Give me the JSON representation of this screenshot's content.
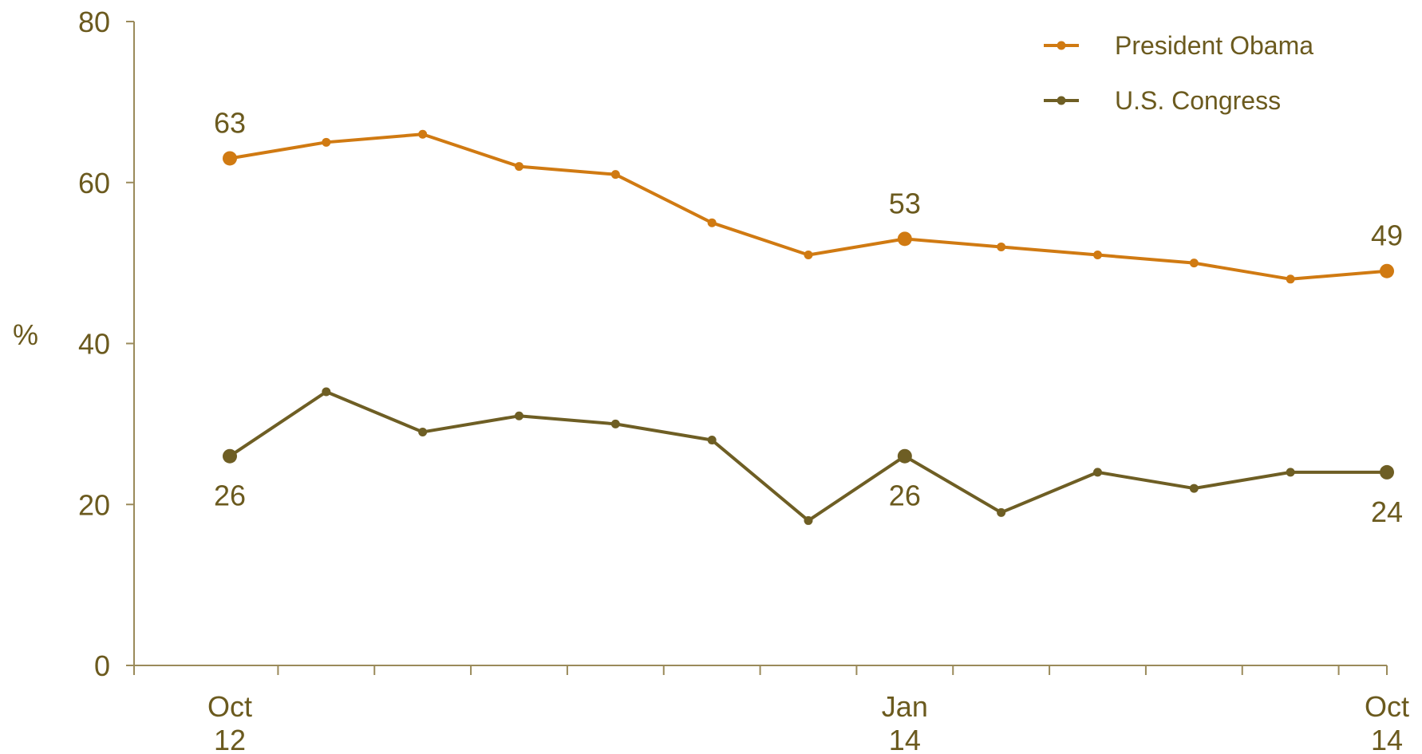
{
  "chart_data": {
    "type": "line",
    "ylabel": "%",
    "ylim": [
      0,
      80
    ],
    "yticks": [
      "0",
      "20",
      "40",
      "60",
      "80"
    ],
    "x_count": 13,
    "x_tick_labels": [
      {
        "index": 0,
        "line1": "Oct",
        "line2": "12"
      },
      {
        "index": 7,
        "line1": "Jan",
        "line2": "14"
      },
      {
        "index": 12,
        "line1": "Oct",
        "line2": "14"
      }
    ],
    "legend_position": "top-right",
    "grid": false,
    "series": [
      {
        "name": "President Obama",
        "color": "#d07a12",
        "values": [
          63,
          65,
          66,
          62,
          61,
          55,
          51,
          53,
          52,
          51,
          50,
          48,
          49
        ],
        "labeled_points": [
          0,
          7,
          12
        ],
        "label_position": "above"
      },
      {
        "name": "U.S. Congress",
        "color": "#6e5e24",
        "values": [
          26,
          34,
          29,
          31,
          30,
          28,
          18,
          26,
          19,
          24,
          22,
          24,
          24
        ],
        "labeled_points": [
          0,
          7,
          12
        ],
        "label_position": "below"
      }
    ]
  }
}
